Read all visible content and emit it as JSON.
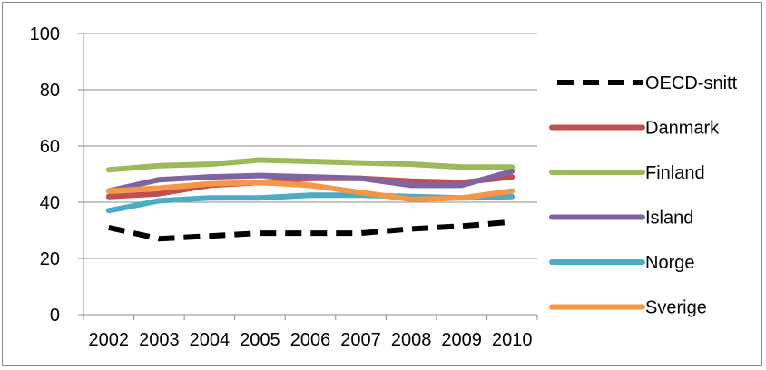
{
  "chart_data": {
    "type": "line",
    "title": "",
    "xlabel": "",
    "ylabel": "",
    "categories": [
      "2002",
      "2003",
      "2004",
      "2005",
      "2006",
      "2007",
      "2008",
      "2009",
      "2010"
    ],
    "ylim": [
      0,
      100
    ],
    "yticks": [
      0,
      20,
      40,
      60,
      80,
      100
    ],
    "grid": "horizontal",
    "legend_position": "right",
    "series": [
      {
        "name": "OECD-snitt",
        "color": "#000000",
        "style": "dashed",
        "values": [
          31,
          27,
          28,
          29,
          29,
          29,
          30.5,
          31.5,
          33
        ]
      },
      {
        "name": "Danmark",
        "color": "#c0504d",
        "style": "solid",
        "values": [
          42,
          43,
          46,
          47,
          48.5,
          48.5,
          47.5,
          47,
          49
        ]
      },
      {
        "name": "Finland",
        "color": "#9bbb59",
        "style": "solid",
        "values": [
          51.5,
          53,
          53.5,
          55,
          54.5,
          54,
          53.5,
          52.5,
          52.5
        ]
      },
      {
        "name": "Island",
        "color": "#8064a2",
        "style": "solid",
        "values": [
          44,
          48,
          49,
          49.5,
          49,
          48.5,
          46,
          46,
          51
        ]
      },
      {
        "name": "Norge",
        "color": "#4bacc6",
        "style": "solid",
        "values": [
          37,
          40.5,
          41.5,
          41.5,
          42.5,
          42.5,
          42,
          41.5,
          42
        ]
      },
      {
        "name": "Sverige",
        "color": "#f79646",
        "style": "solid",
        "values": [
          44,
          45,
          46.5,
          47,
          46,
          43.5,
          41,
          41.5,
          44
        ]
      }
    ]
  }
}
